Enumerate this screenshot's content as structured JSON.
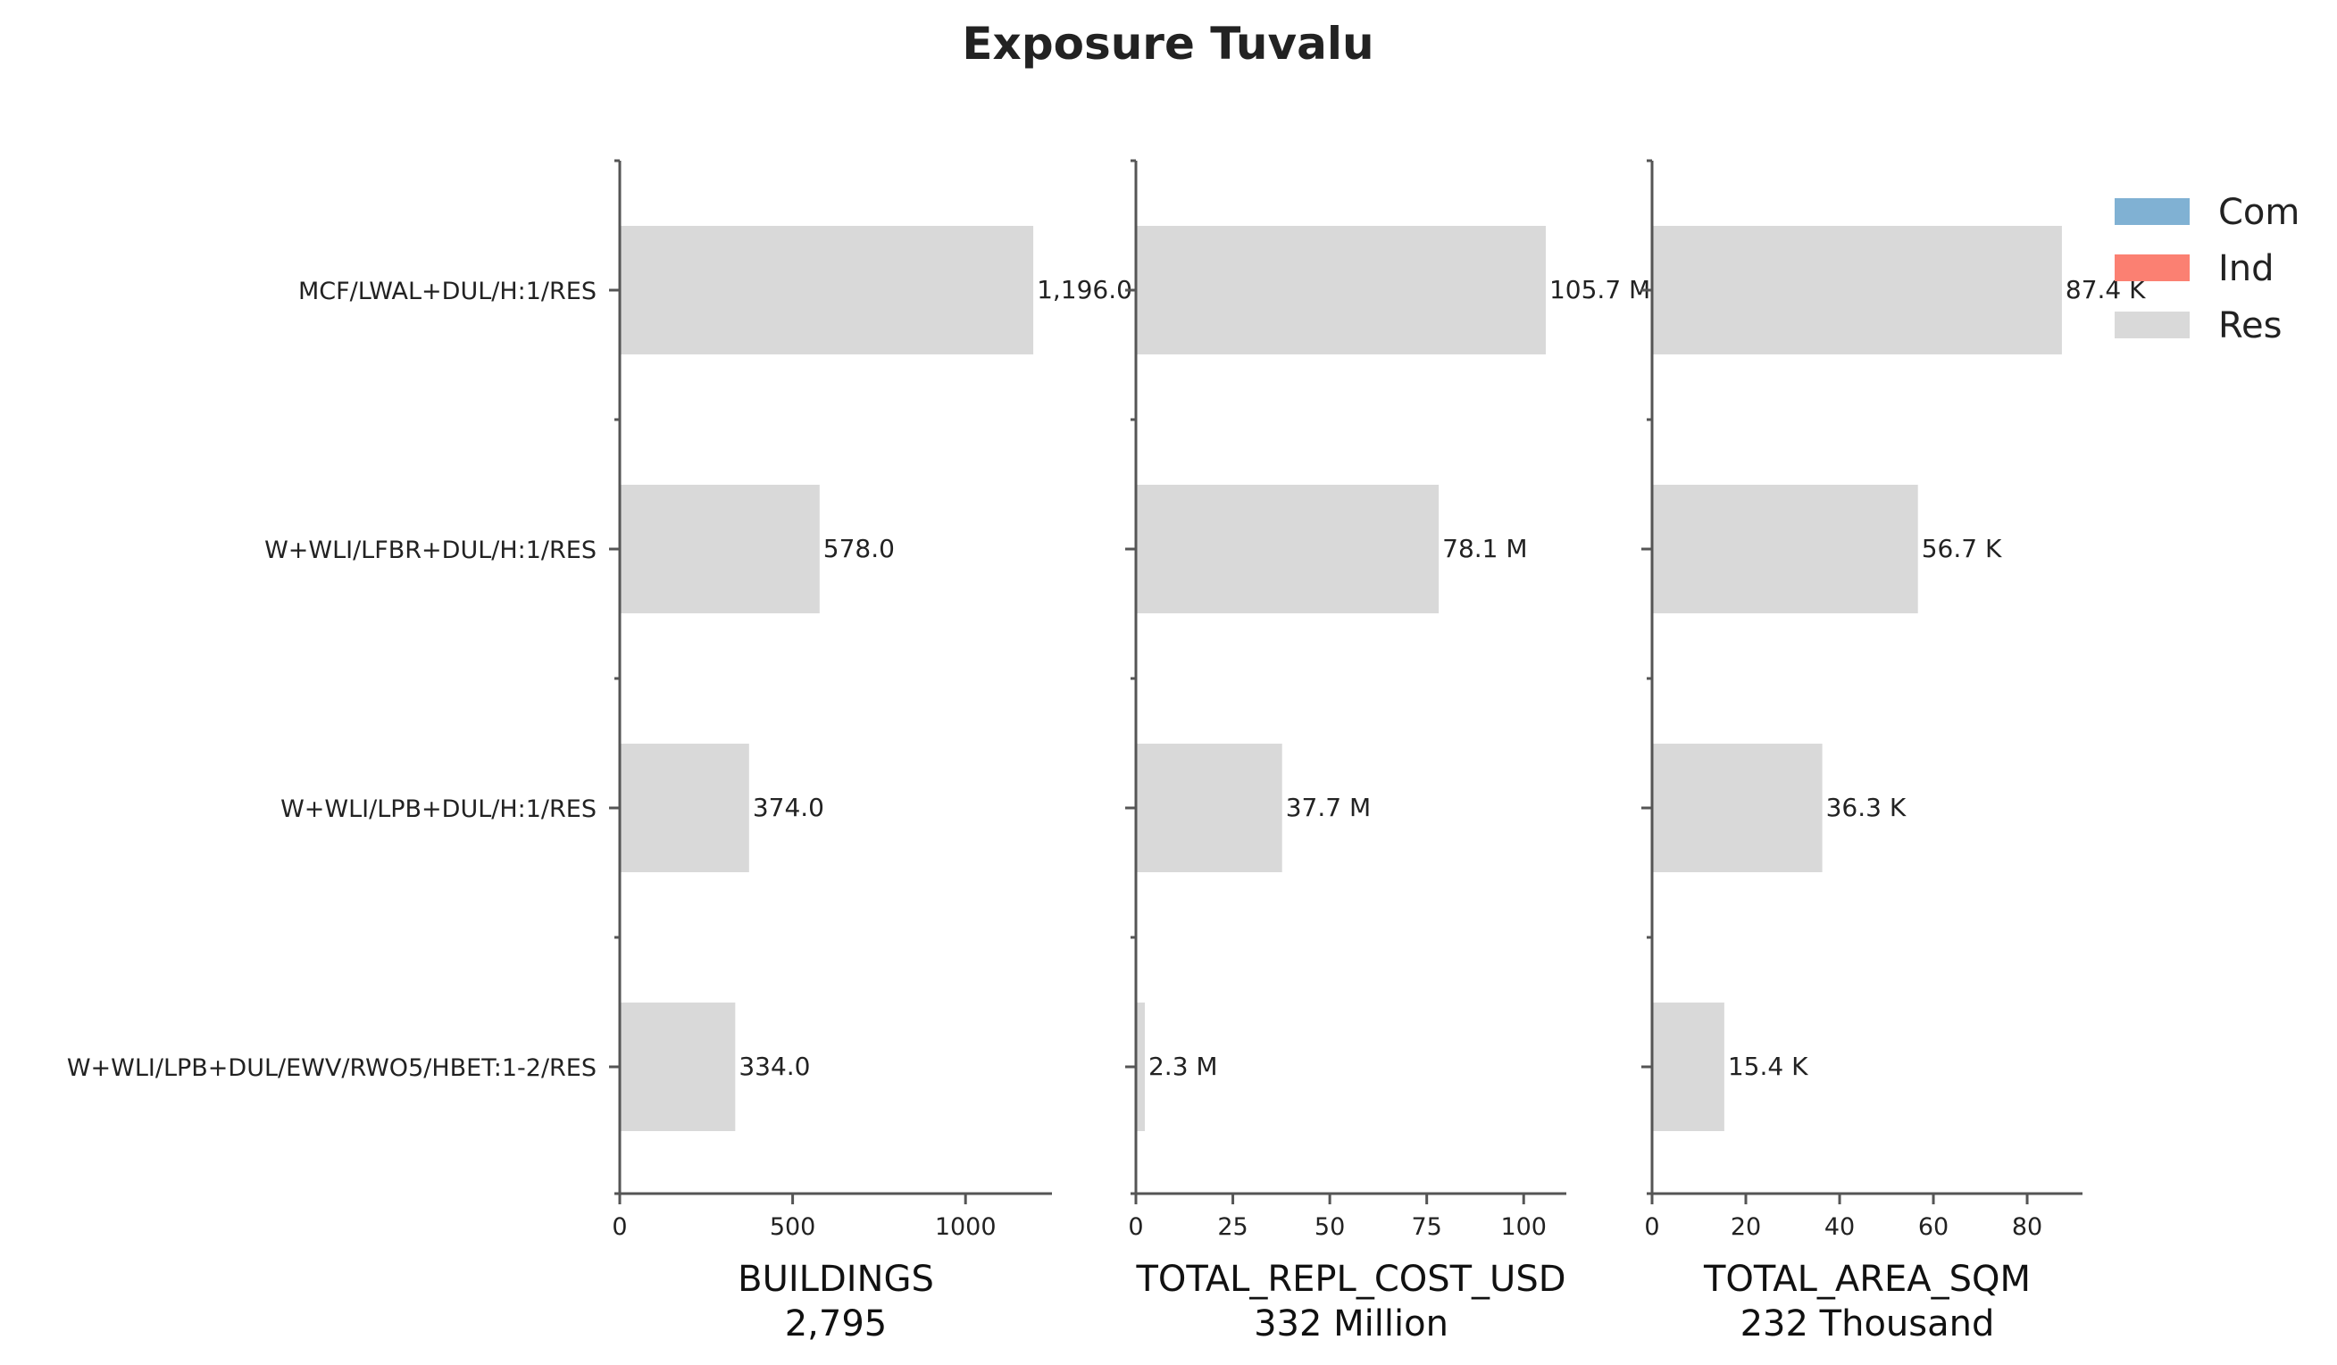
{
  "chart_data": {
    "type": "bar",
    "orientation": "horizontal",
    "title": "Exposure Tuvalu",
    "categories": [
      "MCF/LWAL+DUL/H:1/RES",
      "W+WLI/LFBR+DUL/H:1/RES",
      "W+WLI/LPB+DUL/H:1/RES",
      "W+WLI/LPB+DUL/EWV/RWO5/HBET:1-2/RES"
    ],
    "legend": {
      "placement": "top-right",
      "entries": [
        {
          "name": "Com",
          "color": "#80b1d3"
        },
        {
          "name": "Ind",
          "color": "#fb8072"
        },
        {
          "name": "Res",
          "color": "#d9d9d9"
        }
      ]
    },
    "panels": [
      {
        "xlabel": "BUILDINGS",
        "total": "2,795",
        "xlim": [
          0,
          1250
        ],
        "xticks": [
          0,
          500,
          1000
        ],
        "xtick_labels": [
          "0",
          "500",
          "1000"
        ],
        "series": [
          {
            "name": "Res",
            "values": [
              1196,
              578,
              374,
              334
            ]
          }
        ],
        "value_labels": [
          "1,196.0",
          "578.0",
          "374.0",
          "334.0"
        ]
      },
      {
        "xlabel": "TOTAL_REPL_COST_USD",
        "total": "332 Million",
        "xlim": [
          0,
          111
        ],
        "xticks": [
          0,
          25,
          50,
          75,
          100
        ],
        "xtick_labels": [
          "0",
          "25",
          "50",
          "75",
          "100"
        ],
        "series": [
          {
            "name": "Res",
            "values": [
              105.7,
              78.1,
              37.7,
              2.3
            ]
          }
        ],
        "value_labels": [
          "105.7 M",
          "78.1 M",
          "37.7 M",
          "2.3 M"
        ]
      },
      {
        "xlabel": "TOTAL_AREA_SQM",
        "total": "232 Thousand",
        "xlim": [
          0,
          91.8
        ],
        "xticks": [
          0,
          20,
          40,
          60,
          80
        ],
        "xtick_labels": [
          "0",
          "20",
          "40",
          "60",
          "80"
        ],
        "series": [
          {
            "name": "Res",
            "values": [
              87.4,
              56.7,
              36.3,
              15.4
            ]
          }
        ],
        "value_labels": [
          "87.4 K",
          "56.7 K",
          "36.3 K",
          "15.4 K"
        ]
      }
    ]
  }
}
